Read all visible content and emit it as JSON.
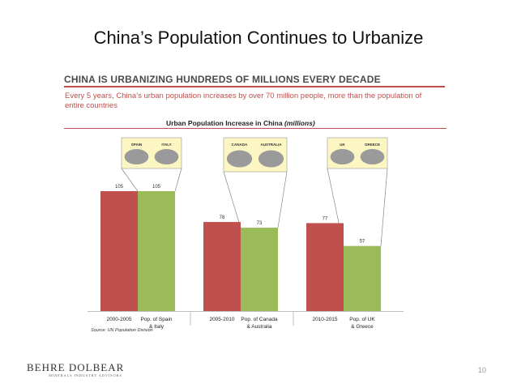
{
  "slide": {
    "title": "China’s Population Continues to Urbanize",
    "header": "CHINA IS URBANIZING HUNDREDS OF MILLIONS EVERY DECADE",
    "subtitle": "Every 5 years, China’s urban population increases by over 70 million people, more than the population of entire countries",
    "chart_heading": "Urban Population Increase in China",
    "chart_heading_units": "(millions)",
    "source": "Source: UN Population Division",
    "brand": "BEHRE DOLBEAR",
    "brand_sub": "MINERALS INDUSTRY ADVISORS",
    "page_number": "10"
  },
  "chart_data": {
    "type": "bar",
    "title": "Urban Population Increase in China (millions)",
    "xlabel": "",
    "ylabel": "",
    "ylim": [
      0,
      120
    ],
    "colors": {
      "china": "#c0504d",
      "country": "#9bbb59",
      "map_box": "#fbf6c2"
    },
    "groups": [
      {
        "china_label": "2000-2005",
        "china_value": 105,
        "country_label": [
          "Pop. of Spain",
          "& Italy"
        ],
        "country_value": 105,
        "maps": [
          "SPAIN",
          "ITALY"
        ]
      },
      {
        "china_label": "2005-2010",
        "china_value": 78,
        "country_label": [
          "Pop. of Canada",
          "& Australia"
        ],
        "country_value": 73,
        "maps": [
          "CANADA",
          "AUSTRALIA"
        ]
      },
      {
        "china_label": "2010-2015",
        "china_value": 77,
        "country_label": [
          "Pop. of UK",
          "& Greece"
        ],
        "country_value": 57,
        "maps": [
          "UK",
          "GREECE"
        ]
      }
    ]
  }
}
